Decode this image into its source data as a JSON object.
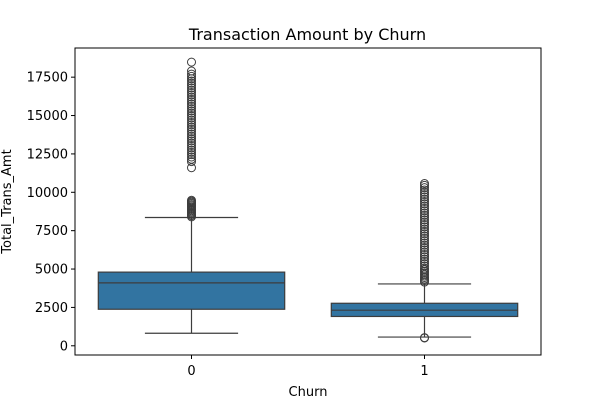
{
  "chart_data": {
    "type": "box",
    "title": "Transaction Amount by Churn",
    "xlabel": "Churn",
    "ylabel": "Total_Trans_Amt",
    "categories": [
      "0",
      "1"
    ],
    "ylim": [
      -600,
      19400
    ],
    "yticks": [
      0,
      2500,
      5000,
      7500,
      10000,
      12500,
      15000,
      17500
    ],
    "ytick_labels": [
      "0",
      "2500",
      "5000",
      "7500",
      "10000",
      "12500",
      "15000",
      "17500"
    ],
    "box_color": "#3274a1",
    "line_color": "#3d3d3d",
    "boxes": [
      {
        "category": "0",
        "whisker_low": 816,
        "q1": 2380,
        "median": 4100,
        "q3": 4800,
        "whisker_high": 8360,
        "outliers": [
          8400,
          8480,
          8560,
          8640,
          8720,
          8800,
          8880,
          8960,
          9040,
          9120,
          9200,
          9280,
          9350,
          9420,
          9480,
          11600,
          12000,
          12150,
          12300,
          12450,
          12600,
          12750,
          12900,
          13050,
          13200,
          13350,
          13500,
          13650,
          13800,
          13950,
          14100,
          14250,
          14400,
          14550,
          14700,
          14850,
          15000,
          15150,
          15300,
          15450,
          15600,
          15750,
          15900,
          16050,
          16200,
          16350,
          16500,
          16650,
          16800,
          16950,
          17100,
          17250,
          17400,
          17550,
          17700,
          17900,
          18480
        ]
      },
      {
        "category": "1",
        "whisker_low": 570,
        "q1": 1910,
        "median": 2320,
        "q3": 2770,
        "whisker_high": 4030,
        "outliers": [
          510,
          530,
          4150,
          4250,
          4350,
          4450,
          4550,
          4650,
          4750,
          4850,
          4950,
          5050,
          5200,
          5350,
          5500,
          5650,
          5800,
          5950,
          6100,
          6250,
          6400,
          6550,
          6700,
          6850,
          7000,
          7150,
          7300,
          7450,
          7600,
          7750,
          7900,
          8050,
          8200,
          8350,
          8500,
          8650,
          8800,
          8950,
          9100,
          9250,
          9400,
          9550,
          9700,
          9850,
          10000,
          10150,
          10300,
          10450,
          10570
        ]
      }
    ]
  }
}
